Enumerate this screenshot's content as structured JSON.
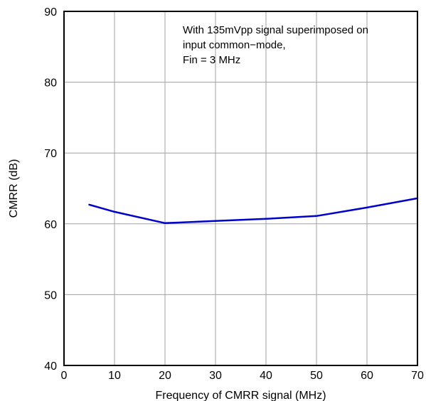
{
  "chart_data": {
    "type": "line",
    "title": "",
    "xlabel": "Frequency of CMRR signal (MHz)",
    "ylabel": "CMRR (dB)",
    "xlim": [
      0,
      70
    ],
    "ylim": [
      40,
      90
    ],
    "x_ticks": [
      0,
      10,
      20,
      30,
      40,
      50,
      60,
      70
    ],
    "y_ticks": [
      40,
      50,
      60,
      70,
      80,
      90
    ],
    "grid": true,
    "legend": "none",
    "annotation": [
      "With 135mVpp signal superimposed on",
      "input common−mode,",
      "Fin = 3 MHz"
    ],
    "series": [
      {
        "color": "#0000cc",
        "x": [
          5,
          10,
          20,
          30,
          40,
          50,
          60,
          70
        ],
        "y": [
          62.7,
          61.7,
          60.1,
          60.4,
          60.7,
          61.1,
          62.3,
          63.6
        ]
      }
    ]
  },
  "colors": {
    "background": "#ffffff",
    "axes": "#000000",
    "grid": "#a0a0a0",
    "text": "#000000"
  }
}
